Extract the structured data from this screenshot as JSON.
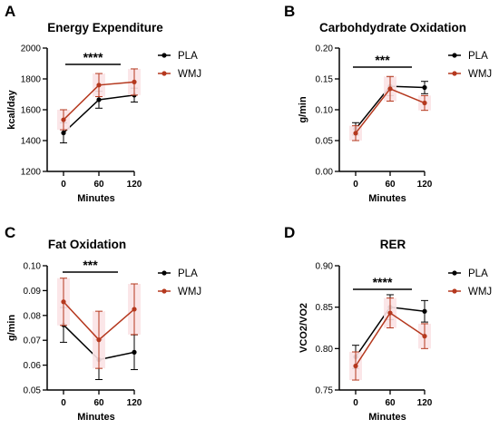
{
  "colors": {
    "PLA": "#000000",
    "WMJ": "#b5381e",
    "band": "#fbe3e6"
  },
  "chart_data": [
    {
      "letter": "A",
      "type": "line",
      "title": "Energy Expenditure",
      "xlabel": "Minutes",
      "ylabel": "kcal/day",
      "categories": [
        "0",
        "60",
        "120"
      ],
      "ylim": [
        1200,
        2000
      ],
      "yticks": [
        "1200",
        "1400",
        "1600",
        "1800",
        "2000"
      ],
      "significance": "****",
      "legend_position": "top-right",
      "series": [
        {
          "name": "PLA",
          "values": [
            1450,
            1665,
            1695
          ],
          "errors": [
            65,
            55,
            45
          ]
        },
        {
          "name": "WMJ",
          "values": [
            1535,
            1760,
            1780
          ],
          "errors": [
            65,
            75,
            85
          ]
        }
      ]
    },
    {
      "letter": "B",
      "type": "line",
      "title": "Carbohdydrate Oxidation",
      "xlabel": "Minutes",
      "ylabel": "g/min",
      "categories": [
        "0",
        "60",
        "120"
      ],
      "ylim": [
        0.0,
        0.2
      ],
      "yticks": [
        "0.00",
        "0.05",
        "0.10",
        "0.15",
        "0.20"
      ],
      "significance": "***",
      "legend_position": "top-right",
      "series": [
        {
          "name": "PLA",
          "values": [
            0.069,
            0.138,
            0.136
          ],
          "errors": [
            0.01,
            0.015,
            0.01
          ]
        },
        {
          "name": "WMJ",
          "values": [
            0.062,
            0.134,
            0.111
          ],
          "errors": [
            0.012,
            0.02,
            0.012
          ]
        }
      ]
    },
    {
      "letter": "C",
      "type": "line",
      "title": "Fat Oxidation",
      "xlabel": "Minutes",
      "ylabel": "g/min",
      "categories": [
        "0",
        "60",
        "120"
      ],
      "ylim": [
        0.05,
        0.1
      ],
      "yticks": [
        "0.05",
        "0.06",
        "0.07",
        "0.08",
        "0.09",
        "0.10"
      ],
      "significance": "***",
      "legend_position": "top-right",
      "series": [
        {
          "name": "PLA",
          "values": [
            0.0762,
            0.0622,
            0.0652
          ],
          "errors": [
            0.007,
            0.008,
            0.007
          ]
        },
        {
          "name": "WMJ",
          "values": [
            0.0855,
            0.0702,
            0.0825
          ],
          "errors": [
            0.0095,
            0.0115,
            0.0102
          ]
        }
      ]
    },
    {
      "letter": "D",
      "type": "line",
      "title": "RER",
      "xlabel": "Minutes",
      "ylabel": "VCO2/VO2",
      "categories": [
        "0",
        "60",
        "120"
      ],
      "ylim": [
        0.75,
        0.9
      ],
      "yticks": [
        "0.75",
        "0.80",
        "0.85",
        "0.90"
      ],
      "significance": "****",
      "legend_position": "top-right",
      "series": [
        {
          "name": "PLA",
          "values": [
            0.79,
            0.85,
            0.845
          ],
          "errors": [
            0.014,
            0.015,
            0.013
          ]
        },
        {
          "name": "WMJ",
          "values": [
            0.779,
            0.843,
            0.815
          ],
          "errors": [
            0.017,
            0.018,
            0.015
          ]
        }
      ]
    }
  ]
}
